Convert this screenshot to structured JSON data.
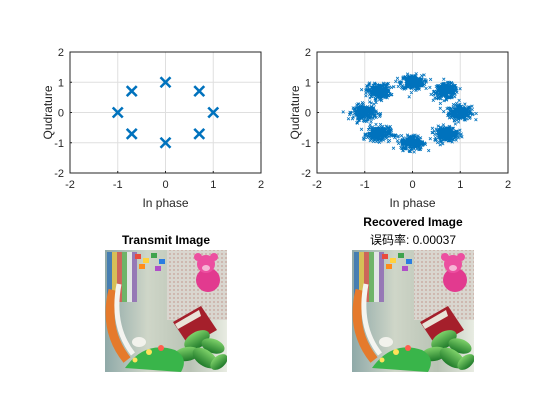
{
  "colors": {
    "marker": "#0072BD",
    "grid": "#dfdfdf",
    "axis": "#262626"
  },
  "chart_data": [
    {
      "type": "scatter",
      "marker": "x",
      "title": "",
      "xlabel": "In phase",
      "ylabel": "Qudrature",
      "xlim": [
        -2,
        2
      ],
      "ylim": [
        -2,
        2
      ],
      "xticks": [
        -2,
        -1,
        0,
        1,
        2
      ],
      "yticks": [
        -2,
        -1,
        0,
        1,
        2
      ],
      "grid": true,
      "x": [
        1,
        0.7071,
        0,
        -0.7071,
        -1,
        -0.7071,
        0,
        0.7071
      ],
      "y": [
        0,
        0.7071,
        1,
        0.7071,
        0,
        -0.7071,
        -1,
        -0.7071
      ]
    },
    {
      "type": "scatter",
      "marker": "x",
      "title": "",
      "xlabel": "In phase",
      "ylabel": "Qudrature",
      "xlim": [
        -2,
        2
      ],
      "ylim": [
        -2,
        2
      ],
      "xticks": [
        -2,
        -1,
        0,
        1,
        2
      ],
      "yticks": [
        -2,
        -1,
        0,
        1,
        2
      ],
      "grid": true,
      "cluster_centers_x": [
        1,
        0.7071,
        0,
        -0.7071,
        -1,
        -0.7071,
        0,
        0.7071
      ],
      "cluster_centers_y": [
        0,
        0.7071,
        1,
        0.7071,
        0,
        -0.7071,
        -1,
        -0.7071
      ],
      "noise_spread": 0.12
    }
  ],
  "images": [
    {
      "title": "Transmit Image"
    },
    {
      "title": "Recovered Image",
      "subtitle": "误码率: 0.00037"
    }
  ]
}
